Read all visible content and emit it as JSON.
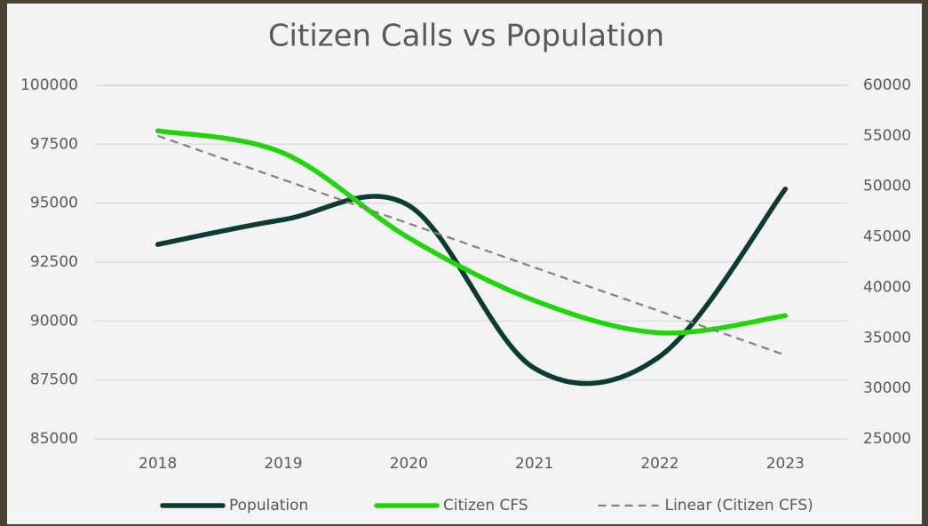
{
  "chart_data": {
    "type": "line",
    "title": "Citizen Calls vs Population",
    "categories": [
      "2018",
      "2019",
      "2020",
      "2021",
      "2022",
      "2023"
    ],
    "ylim": [
      85000,
      100000
    ],
    "yticks": [
      85000,
      87500,
      90000,
      92500,
      95000,
      97500,
      100000
    ],
    "y2lim": [
      25000,
      60000
    ],
    "y2ticks": [
      25000,
      30000,
      35000,
      40000,
      45000,
      50000,
      55000,
      60000
    ],
    "grid": true,
    "smooth": true,
    "legend": "bottom",
    "series": [
      {
        "name": "Population",
        "color": "#0c3b33",
        "values": [
          93250,
          94300,
          94900,
          88000,
          88500,
          95600
        ]
      },
      {
        "name": "Citizen CFS",
        "color": "#22d40c",
        "axis": "y2",
        "values": [
          55500,
          53300,
          44900,
          38700,
          35500,
          37200
        ]
      },
      {
        "name": "Linear (Citizen CFS)",
        "color": "#808080",
        "axis": "y2",
        "dashed": true,
        "values": [
          55000,
          50660,
          46320,
          41980,
          37640,
          33300
        ]
      }
    ]
  }
}
